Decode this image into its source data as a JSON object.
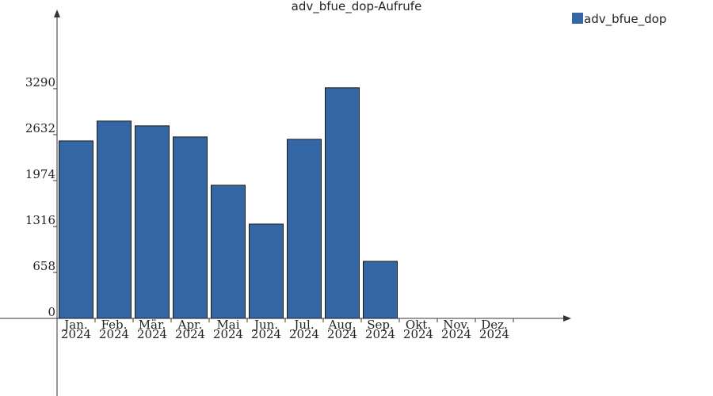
{
  "chart_data": {
    "type": "bar",
    "title": "adv_bfue_dop-Aufrufe",
    "categories": [
      "Jan. 2024",
      "Feb. 2024",
      "Mär. 2024",
      "Apr. 2024",
      "Mai 2024",
      "Jun. 2024",
      "Jul. 2024",
      "Aug. 2024",
      "Sep. 2024",
      "Okt. 2024",
      "Nov. 2024",
      "Dez. 2024"
    ],
    "series": [
      {
        "name": "adv_bfue_dop",
        "color": "#3465a4",
        "values": [
          2542,
          2826,
          2758,
          2599,
          1907,
          1351,
          2565,
          3303,
          817,
          null,
          null,
          null
        ]
      }
    ],
    "ylim": [
      0,
      4390
    ],
    "yticks": [
      0,
      658,
      1316,
      1974,
      2632,
      3290
    ],
    "legend": "top-right"
  }
}
